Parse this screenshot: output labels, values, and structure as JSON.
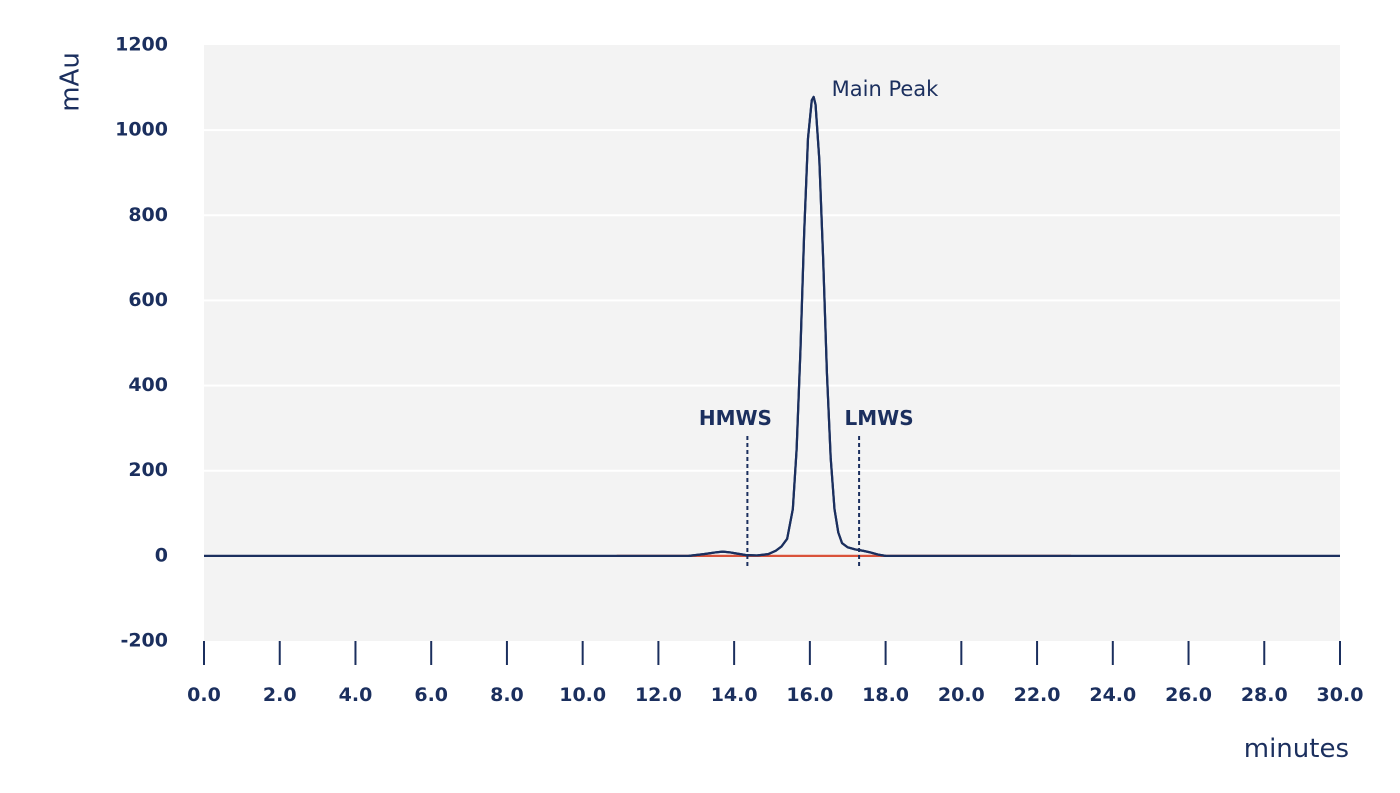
{
  "colors": {
    "trace": "#1b2f5e",
    "baseline": "#d9523a",
    "plot_background": "#f3f3f3",
    "gridline": "#ffffff",
    "text": "#1b2f5e"
  },
  "chart_data": {
    "type": "line",
    "title": "",
    "xlabel": "minutes",
    "ylabel": "mAu",
    "xlim": [
      0,
      30
    ],
    "ylim": [
      -200,
      1200
    ],
    "x_ticks": [
      "0.0",
      "2.0",
      "4.0",
      "6.0",
      "8.0",
      "10.0",
      "12.0",
      "14.0",
      "16.0",
      "18.0",
      "20.0",
      "22.0",
      "24.0",
      "26.0",
      "28.0",
      "30.0"
    ],
    "y_ticks": [
      "1200",
      "1000",
      "800",
      "600",
      "400",
      "200",
      "0",
      "-200"
    ],
    "grid": true,
    "series": [
      {
        "x": [
          0,
          12.8,
          13.2,
          13.5,
          13.7,
          13.9,
          14.1,
          14.3,
          14.6,
          14.9,
          15.1,
          15.25,
          15.4,
          15.55,
          15.65,
          15.75,
          15.85,
          15.95,
          16.05,
          16.1,
          16.15,
          16.25,
          16.35,
          16.45,
          16.55,
          16.65,
          16.75,
          16.85,
          17.0,
          17.2,
          17.4,
          17.6,
          17.8,
          18.0,
          30
        ],
        "y": [
          0,
          0,
          4,
          8,
          10,
          8,
          5,
          2,
          1,
          4,
          12,
          22,
          40,
          110,
          250,
          480,
          760,
          980,
          1070,
          1078,
          1060,
          930,
          700,
          430,
          230,
          110,
          55,
          30,
          20,
          15,
          12,
          8,
          3,
          0,
          0
        ]
      }
    ],
    "baseline_segment": {
      "x_start": 10.9,
      "x_end": 22.9,
      "y": 0
    },
    "annotations": [
      {
        "text": "Main Peak",
        "x": 16.1,
        "y": 1078
      },
      {
        "text": "HMWS",
        "x": 14.35
      },
      {
        "text": "LMWS",
        "x": 17.3
      }
    ]
  }
}
